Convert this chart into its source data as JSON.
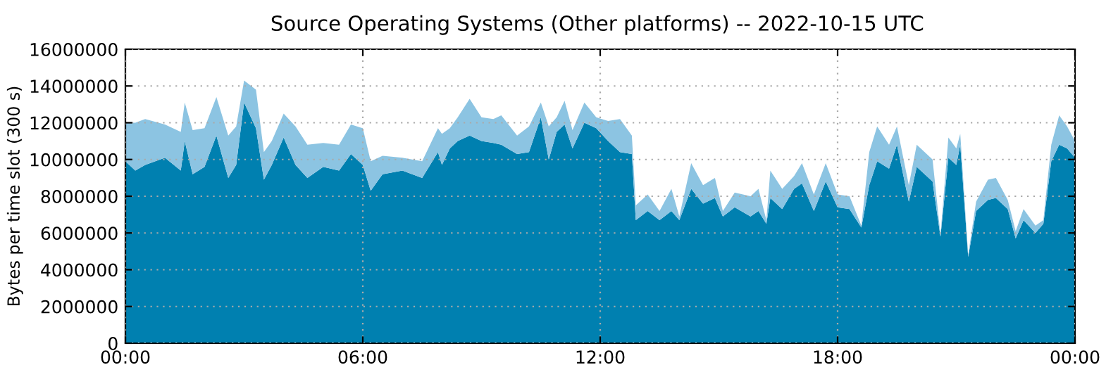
{
  "chart_data": {
    "type": "area",
    "stacked": true,
    "title": "Source Operating Systems (Other platforms) -- 2022-10-15 UTC",
    "ylabel": "Bytes per time slot (300 s)",
    "x": [
      0,
      0.25,
      0.5,
      1,
      1.4,
      1.5,
      1.7,
      2,
      2.3,
      2.6,
      2.8,
      3.0,
      3.3,
      3.5,
      3.7,
      4.0,
      4.3,
      4.6,
      5.0,
      5.4,
      5.7,
      6.0,
      6.2,
      6.5,
      7.0,
      7.5,
      7.9,
      8.0,
      8.2,
      8.4,
      8.7,
      9.0,
      9.3,
      9.5,
      9.9,
      10.2,
      10.5,
      10.7,
      10.9,
      11.1,
      11.3,
      11.6,
      11.9,
      12.2,
      12.5,
      12.8,
      12.9,
      13.2,
      13.5,
      13.8,
      14.0,
      14.3,
      14.6,
      14.9,
      15.1,
      15.4,
      15.8,
      16.0,
      16.2,
      16.3,
      16.6,
      16.9,
      17.1,
      17.4,
      17.7,
      18.0,
      18.3,
      18.6,
      18.8,
      19.0,
      19.3,
      19.5,
      19.8,
      20.0,
      20.4,
      20.6,
      20.8,
      21.0,
      21.1,
      21.3,
      21.5,
      21.8,
      22.0,
      22.3,
      22.5,
      22.7,
      23.0,
      23.2,
      23.4,
      23.6,
      23.8,
      24
    ],
    "series": [
      {
        "color": "#0080b0",
        "values": [
          9900000,
          9400000,
          9700000,
          10100000,
          9400000,
          11000000,
          9200000,
          9600000,
          11300000,
          9000000,
          9700000,
          13100000,
          11700000,
          8900000,
          9700000,
          11200000,
          9700000,
          9000000,
          9600000,
          9400000,
          10300000,
          9700000,
          8300000,
          9200000,
          9400000,
          9000000,
          10400000,
          9700000,
          10600000,
          11000000,
          11300000,
          11000000,
          10900000,
          10800000,
          10300000,
          10400000,
          12300000,
          10000000,
          11500000,
          11900000,
          10600000,
          12000000,
          11700000,
          11000000,
          10400000,
          10300000,
          6700000,
          7200000,
          6700000,
          7200000,
          6700000,
          8400000,
          7600000,
          7900000,
          6900000,
          7400000,
          6900000,
          7200000,
          6500000,
          7900000,
          7300000,
          8400000,
          8700000,
          7200000,
          8800000,
          7400000,
          7300000,
          6300000,
          8600000,
          9900000,
          9500000,
          10800000,
          7700000,
          9600000,
          8800000,
          5800000,
          10100000,
          9700000,
          10800000,
          4700000,
          7200000,
          7800000,
          7900000,
          7300000,
          5700000,
          6700000,
          6000000,
          6500000,
          9900000,
          10800000,
          10600000,
          10100000
        ]
      },
      {
        "color": "#8cc4e2",
        "values": [
          2100000,
          2600000,
          2500000,
          1800000,
          2100000,
          2100000,
          2400000,
          2100000,
          2100000,
          2300000,
          2100000,
          1200000,
          2100000,
          1500000,
          1300000,
          1300000,
          2100000,
          1800000,
          1300000,
          1400000,
          1600000,
          2000000,
          1600000,
          1000000,
          700000,
          900000,
          1300000,
          1700000,
          1100000,
          1300000,
          2000000,
          1300000,
          1300000,
          1600000,
          1000000,
          1400000,
          800000,
          1800000,
          800000,
          1300000,
          1000000,
          1100000,
          600000,
          1100000,
          1800000,
          1000000,
          800000,
          900000,
          500000,
          1200000,
          200000,
          1400000,
          1000000,
          1100000,
          300000,
          800000,
          1100000,
          1200000,
          200000,
          1500000,
          1100000,
          700000,
          1100000,
          900000,
          1000000,
          700000,
          700000,
          100000,
          1800000,
          1900000,
          1300000,
          1000000,
          900000,
          1200000,
          1200000,
          100000,
          1100000,
          900000,
          600000,
          100000,
          500000,
          1100000,
          1100000,
          500000,
          400000,
          600000,
          400000,
          200000,
          900000,
          1600000,
          1200000,
          900000
        ]
      }
    ],
    "xlim": [
      0,
      24
    ],
    "xticks": [
      {
        "value": 0,
        "label": "00:00"
      },
      {
        "value": 6,
        "label": "06:00"
      },
      {
        "value": 12,
        "label": "12:00"
      },
      {
        "value": 18,
        "label": "18:00"
      },
      {
        "value": 24,
        "label": "00:00"
      }
    ],
    "ylim": [
      0,
      16000000
    ],
    "yticks": [
      0,
      2000000,
      4000000,
      6000000,
      8000000,
      10000000,
      12000000,
      14000000,
      16000000
    ],
    "grid": true
  }
}
